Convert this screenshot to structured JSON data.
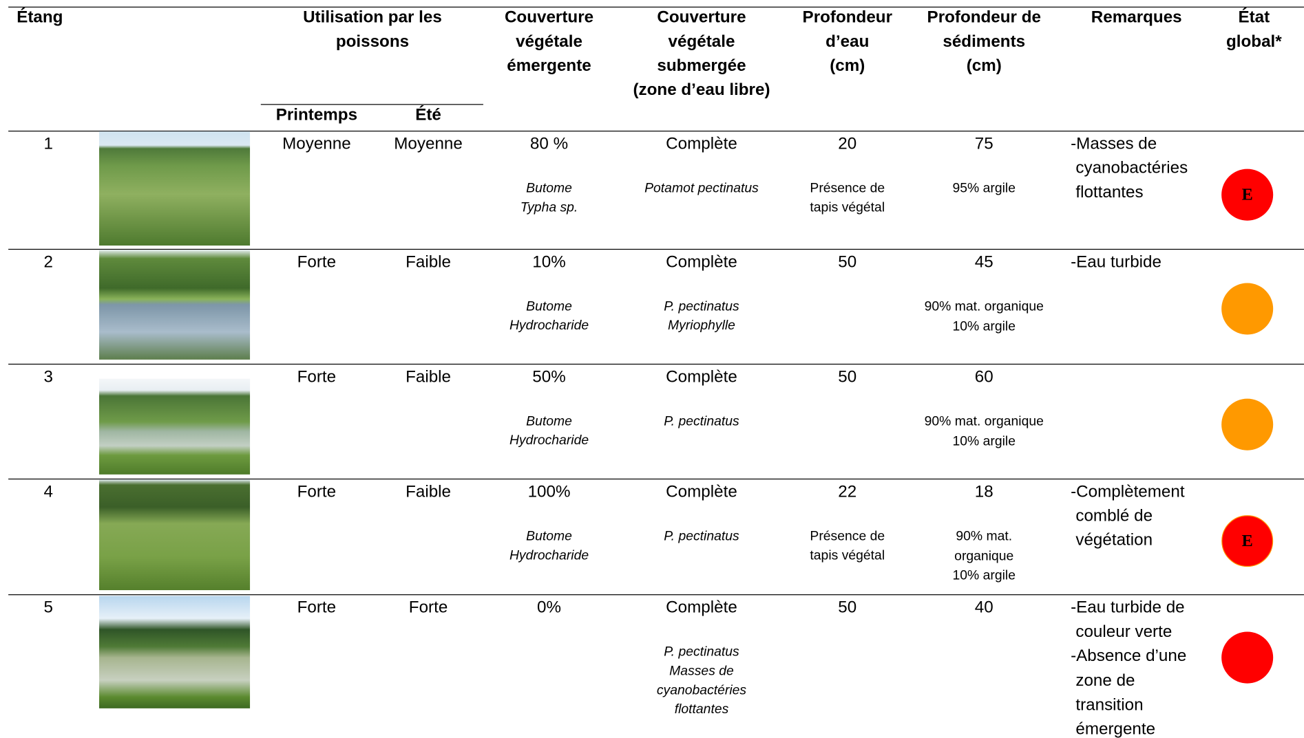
{
  "header": {
    "columns": [
      [
        "Étang"
      ],
      [
        "Utilisation par les",
        "poissons"
      ],
      [
        "Couverture",
        "végétale",
        "émergente"
      ],
      [
        "Couverture",
        "végétale",
        "submergée",
        "(zone d’eau libre)"
      ],
      [
        "Profondeur",
        "d’eau",
        "(cm)"
      ],
      [
        "Profondeur de",
        "sédiments",
        "(cm)"
      ],
      [
        "Remarques"
      ],
      [
        "État",
        "global*"
      ]
    ],
    "subcolumns": [
      "Printemps",
      "Été"
    ]
  },
  "rows": [
    {
      "pond": 1,
      "spring": "Moyenne",
      "summer": "Moyenne",
      "emergent": "80 %",
      "emergent_species": [
        "Butome",
        "Typha sp."
      ],
      "submerged": "Complète",
      "submerged_species": [
        "Potamot pectinatus"
      ],
      "water_depth": 20,
      "water_note": [
        "Présence de",
        "tapis végétal"
      ],
      "sediment_depth": 75,
      "sediment_note": [
        "95% argile"
      ],
      "remarks": [
        "-Masses de",
        "cyanobactéries",
        "flottantes"
      ],
      "status": {
        "color": "#ff0000",
        "label": "E"
      }
    },
    {
      "pond": 2,
      "spring": "Forte",
      "summer": "Faible",
      "emergent": "10%",
      "emergent_species": [
        "Butome",
        "Hydrocharide"
      ],
      "submerged": "Complète",
      "submerged_species": [
        "P. pectinatus",
        "Myriophylle"
      ],
      "water_depth": 50,
      "water_note": [],
      "sediment_depth": 45,
      "sediment_note": [
        "90% mat. organique",
        "10% argile"
      ],
      "remarks": [
        "-Eau turbide"
      ],
      "status": {
        "color": "#ff9900"
      }
    },
    {
      "pond": 3,
      "spring": "Forte",
      "summer": "Faible",
      "emergent": "50%",
      "emergent_species": [
        "Butome",
        "Hydrocharide"
      ],
      "submerged": "Complète",
      "submerged_species": [
        "P. pectinatus"
      ],
      "water_depth": 50,
      "water_note": [],
      "sediment_depth": 60,
      "sediment_note": [
        "90% mat. organique",
        "10% argile"
      ],
      "remarks": [],
      "status": {
        "color": "#ff9900"
      }
    },
    {
      "pond": 4,
      "spring": "Forte",
      "summer": "Faible",
      "emergent": "100%",
      "emergent_species": [
        "Butome",
        "Hydrocharide"
      ],
      "submerged": "Complète",
      "submerged_species": [
        "P. pectinatus"
      ],
      "water_depth": 22,
      "water_note": [
        "Présence de",
        "tapis végétal"
      ],
      "sediment_depth": 18,
      "sediment_note": [
        "90% mat.",
        "organique",
        "10% argile"
      ],
      "remarks": [
        "-Complètement",
        "comblé de",
        "végétation"
      ],
      "status": {
        "color": "#ff0000",
        "border": "#ff9900",
        "label": "E"
      }
    },
    {
      "pond": 5,
      "spring": "Forte",
      "summer": "Forte",
      "emergent": "0%",
      "emergent_species": [],
      "submerged": "Complète",
      "submerged_species": [
        "P. pectinatus",
        "Masses de",
        "cyanobactéries",
        "flottantes"
      ],
      "water_depth": 50,
      "water_note": [],
      "sediment_depth": 40,
      "sediment_note": [],
      "remarks": [
        "-Eau turbide de",
        "couleur verte",
        "-Absence d’une",
        "zone de",
        "transition",
        "émergente"
      ],
      "status": {
        "color": "#ff0000"
      }
    }
  ]
}
